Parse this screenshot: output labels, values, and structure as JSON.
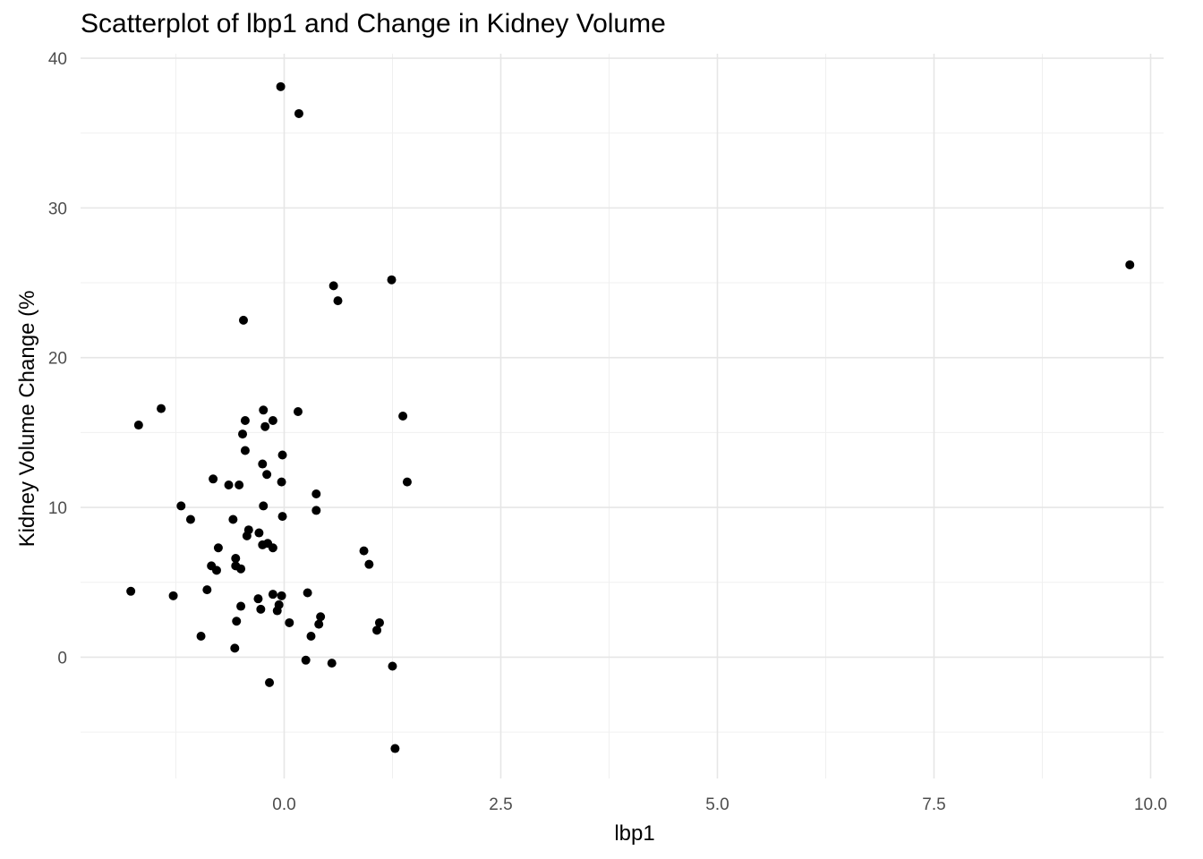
{
  "chart_data": {
    "type": "scatter",
    "title": "Scatterplot of lbp1 and Change in Kidney Volume",
    "xlabel": "lbp1",
    "ylabel": "Kidney Volume Change (%",
    "xlim": [
      -2.35,
      10.15
    ],
    "ylim": [
      -8.1,
      40.3
    ],
    "xticks": [
      0.0,
      2.5,
      5.0,
      7.5,
      10.0
    ],
    "xtick_labels": [
      "0.0",
      "2.5",
      "5.0",
      "7.5",
      "10.0"
    ],
    "yticks": [
      0,
      10,
      20,
      30,
      40
    ],
    "ytick_labels": [
      "0",
      "10",
      "20",
      "30",
      "40"
    ],
    "grid": true,
    "point_color": "#000000",
    "points": [
      {
        "x": -0.04,
        "y": 38.1
      },
      {
        "x": 0.17,
        "y": 36.3
      },
      {
        "x": 9.76,
        "y": 26.2
      },
      {
        "x": 0.57,
        "y": 24.8
      },
      {
        "x": 1.24,
        "y": 25.2
      },
      {
        "x": 0.62,
        "y": 23.8
      },
      {
        "x": -0.47,
        "y": 22.5
      },
      {
        "x": -1.42,
        "y": 16.6
      },
      {
        "x": -1.68,
        "y": 15.5
      },
      {
        "x": -0.24,
        "y": 16.5
      },
      {
        "x": 0.16,
        "y": 16.4
      },
      {
        "x": -0.45,
        "y": 15.8
      },
      {
        "x": -0.13,
        "y": 15.8
      },
      {
        "x": -0.22,
        "y": 15.4
      },
      {
        "x": 1.37,
        "y": 16.1
      },
      {
        "x": -0.48,
        "y": 14.9
      },
      {
        "x": -0.45,
        "y": 13.8
      },
      {
        "x": -0.02,
        "y": 13.5
      },
      {
        "x": -0.25,
        "y": 12.9
      },
      {
        "x": -0.2,
        "y": 12.2
      },
      {
        "x": -0.82,
        "y": 11.9
      },
      {
        "x": -0.64,
        "y": 11.5
      },
      {
        "x": -0.52,
        "y": 11.5
      },
      {
        "x": -0.03,
        "y": 11.7
      },
      {
        "x": 1.42,
        "y": 11.7
      },
      {
        "x": 0.37,
        "y": 10.9
      },
      {
        "x": -1.19,
        "y": 10.1
      },
      {
        "x": -0.24,
        "y": 10.1
      },
      {
        "x": 0.37,
        "y": 9.8
      },
      {
        "x": -1.08,
        "y": 9.2
      },
      {
        "x": -0.59,
        "y": 9.2
      },
      {
        "x": -0.02,
        "y": 9.4
      },
      {
        "x": -0.41,
        "y": 8.5
      },
      {
        "x": -0.29,
        "y": 8.3
      },
      {
        "x": -0.43,
        "y": 8.1
      },
      {
        "x": -0.25,
        "y": 7.5
      },
      {
        "x": -0.19,
        "y": 7.6
      },
      {
        "x": -0.13,
        "y": 7.3
      },
      {
        "x": -0.76,
        "y": 7.3
      },
      {
        "x": 0.92,
        "y": 7.1
      },
      {
        "x": -0.56,
        "y": 6.6
      },
      {
        "x": -0.84,
        "y": 6.1
      },
      {
        "x": -0.56,
        "y": 6.1
      },
      {
        "x": -0.5,
        "y": 5.9
      },
      {
        "x": -0.78,
        "y": 5.8
      },
      {
        "x": 0.98,
        "y": 6.2
      },
      {
        "x": -1.77,
        "y": 4.4
      },
      {
        "x": -0.89,
        "y": 4.5
      },
      {
        "x": -1.28,
        "y": 4.1
      },
      {
        "x": -0.13,
        "y": 4.2
      },
      {
        "x": -0.03,
        "y": 4.1
      },
      {
        "x": 0.27,
        "y": 4.3
      },
      {
        "x": -0.3,
        "y": 3.9
      },
      {
        "x": -0.5,
        "y": 3.4
      },
      {
        "x": -0.06,
        "y": 3.5
      },
      {
        "x": -0.27,
        "y": 3.2
      },
      {
        "x": -0.08,
        "y": 3.1
      },
      {
        "x": 0.42,
        "y": 2.7
      },
      {
        "x": -0.55,
        "y": 2.4
      },
      {
        "x": 0.06,
        "y": 2.3
      },
      {
        "x": 1.1,
        "y": 2.3
      },
      {
        "x": 0.4,
        "y": 2.2
      },
      {
        "x": 1.07,
        "y": 1.8
      },
      {
        "x": -0.96,
        "y": 1.4
      },
      {
        "x": 0.31,
        "y": 1.4
      },
      {
        "x": -0.57,
        "y": 0.6
      },
      {
        "x": 0.25,
        "y": -0.2
      },
      {
        "x": 0.55,
        "y": -0.4
      },
      {
        "x": 1.25,
        "y": -0.6
      },
      {
        "x": -0.17,
        "y": -1.7
      },
      {
        "x": 1.28,
        "y": -6.1
      }
    ]
  }
}
